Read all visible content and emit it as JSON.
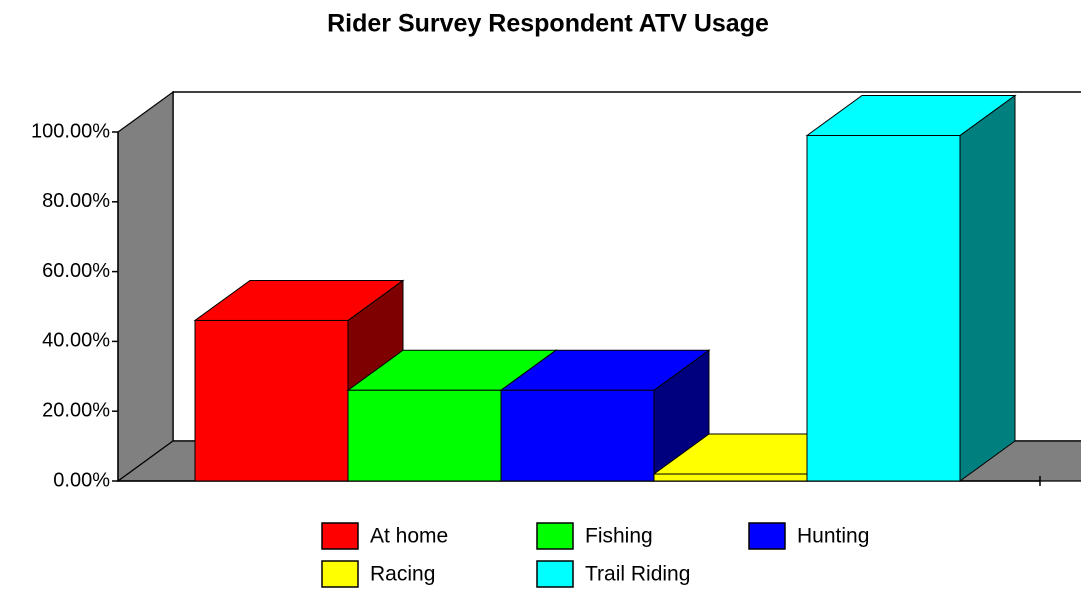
{
  "chart_data": {
    "type": "bar3d",
    "title": "Rider Survey Respondent ATV Usage",
    "series": [
      {
        "name": "At home",
        "color": "#ff0000",
        "values": [
          46
        ]
      },
      {
        "name": "Fishing",
        "color": "#00ff00",
        "values": [
          26
        ]
      },
      {
        "name": "Hunting",
        "color": "#0000ff",
        "values": [
          26
        ]
      },
      {
        "name": "Racing",
        "color": "#ffff00",
        "values": [
          2
        ]
      },
      {
        "name": "Trail Riding",
        "color": "#00ffff",
        "values": [
          99
        ]
      }
    ],
    "ylim": [
      0,
      100
    ],
    "yticks": [
      {
        "value": 0,
        "label": "0.00%"
      },
      {
        "value": 20,
        "label": "20.00%"
      },
      {
        "value": 40,
        "label": "40.00%"
      },
      {
        "value": 60,
        "label": "60.00%"
      },
      {
        "value": 80,
        "label": "80.00%"
      },
      {
        "value": 100,
        "label": "100.00%"
      }
    ]
  }
}
